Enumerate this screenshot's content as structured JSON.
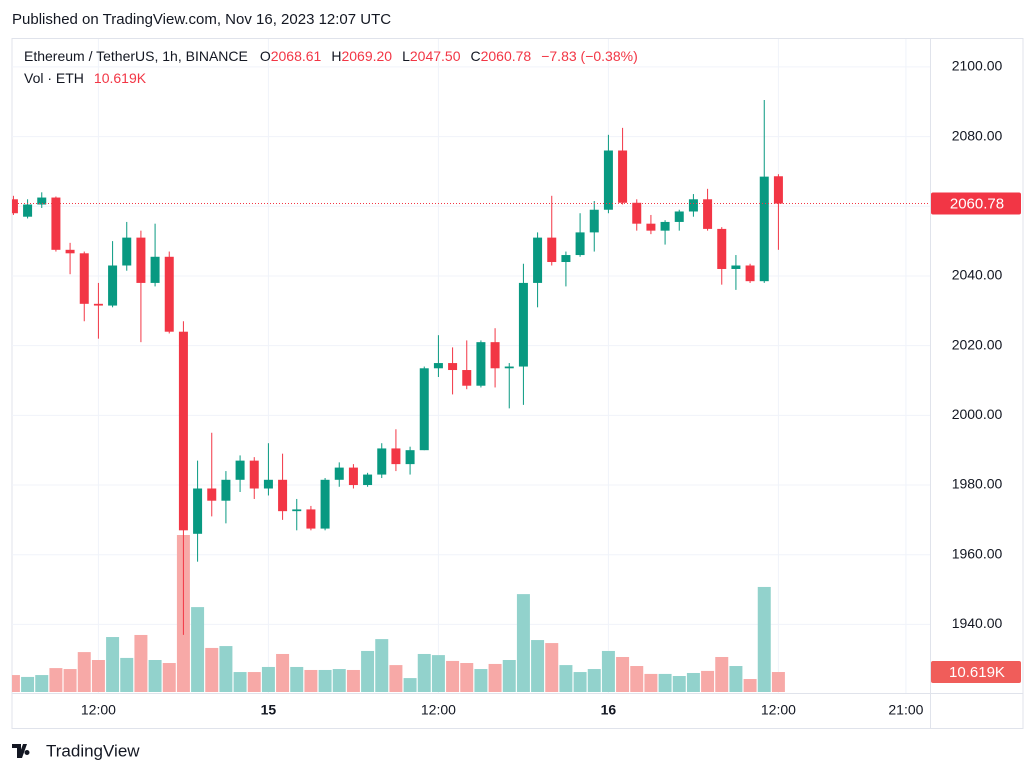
{
  "chart_data": {
    "type": "candlestick",
    "published": "Published on TradingView.com, Nov 16, 2023 12:07 UTC",
    "legend": {
      "symbol": "Ethereum / TetherUS, 1h, BINANCE",
      "fields": [
        {
          "key": "O",
          "label": "2068.61"
        },
        {
          "key": "H",
          "label": "2069.20"
        },
        {
          "key": "L",
          "label": "2047.50"
        },
        {
          "key": "C",
          "label": "2060.78"
        }
      ],
      "change": "−7.83 (−0.38%)",
      "volume_name": "Vol · ETH",
      "volume_label": "10.619K"
    },
    "brand": "TradingView",
    "up_color": "#089981",
    "down_color": "#f23645",
    "up_volume_color": "#92d2cc",
    "down_volume_color": "#f7a9a7",
    "x": [
      -18,
      -17,
      -16,
      -15,
      -14,
      -13,
      -12,
      -11,
      -10,
      -9,
      -8,
      -7,
      -6,
      -5,
      -4,
      -3,
      -2,
      -1,
      0,
      1,
      2,
      3,
      4,
      5,
      6,
      7,
      8,
      9,
      10,
      11,
      12,
      13,
      14,
      15,
      16,
      17,
      18,
      19,
      20,
      21,
      22,
      23,
      24,
      25,
      26,
      27,
      28,
      29,
      30,
      31,
      32,
      33,
      34,
      35,
      36
    ],
    "open": [
      2062,
      2057,
      2060.5,
      2062.5,
      2047.5,
      2046.5,
      2032,
      2031.5,
      2043,
      2051,
      2038,
      2045.5,
      2024,
      1966,
      1979,
      1975.5,
      1981.5,
      1987,
      1979,
      1981.5,
      1972.5,
      1973,
      1967.5,
      1981.5,
      1985,
      1980,
      1983,
      1990.5,
      1986,
      1990,
      2013.5,
      2015,
      2013,
      2008.5,
      2021,
      2013.5,
      2014,
      2038,
      2051,
      2044,
      2046,
      2052.5,
      2059,
      2076,
      2061,
      2055,
      2053,
      2055.5,
      2058.5,
      2062,
      2053.5,
      2042,
      2043,
      2038.5,
      2068.61
    ],
    "high": [
      2063,
      2062,
      2064,
      2062.8,
      2049.5,
      2047,
      2038,
      2050,
      2055.5,
      2053,
      2055,
      2047,
      2027,
      1987,
      1995,
      1984,
      1988.5,
      1988,
      1992,
      1989,
      1976,
      1974,
      1982,
      1986.5,
      1986,
      1983.5,
      1992,
      1996,
      1991,
      2014,
      2023,
      2019.5,
      2021.5,
      2021.5,
      2025,
      2015,
      2043.5,
      2052.5,
      2063,
      2047,
      2058,
      2061.5,
      2080.5,
      2082.5,
      2062,
      2057.5,
      2056,
      2059,
      2063.5,
      2065,
      2054,
      2046,
      2043.5,
      2090.5,
      2069.2
    ],
    "low": [
      2057.5,
      2056.5,
      2059.5,
      2047,
      2040.5,
      2027,
      2022,
      2031,
      2041.5,
      2021,
      2037,
      2023.5,
      1937,
      1958,
      1971,
      1969,
      1978,
      1976,
      1977,
      1970,
      1967,
      1967,
      1967,
      1979.5,
      1979,
      1979.5,
      1982,
      1984,
      1983,
      1990,
      2011,
      2006,
      2007.5,
      2008,
      2008,
      2002,
      2003,
      2031,
      2043,
      2037,
      2045.5,
      2047,
      2058,
      2060.5,
      2053,
      2052,
      2049,
      2053,
      2057,
      2053,
      2037.5,
      2036,
      2038,
      2038,
      2047.5
    ],
    "close": [
      2058,
      2060.5,
      2062.5,
      2047.5,
      2046.5,
      2032,
      2031.5,
      2043,
      2051,
      2038,
      2045.5,
      2024,
      1967,
      1979,
      1975.5,
      1981.5,
      1987,
      1979,
      1981.5,
      1972.5,
      1973,
      1967.5,
      1981.5,
      1985,
      1980,
      1983,
      1990.5,
      1986,
      1990,
      2013.5,
      2015,
      2013,
      2008.5,
      2021,
      2013.5,
      2014,
      2038,
      2051,
      2044,
      2046,
      2052.5,
      2059,
      2076,
      2061,
      2055,
      2053,
      2055.5,
      2058.5,
      2062,
      2053.5,
      2042,
      2043,
      2038.5,
      2068.5,
      2060.78
    ],
    "volume": [
      9000,
      8000,
      9000,
      12700,
      12200,
      21200,
      17000,
      29200,
      18100,
      30300,
      17000,
      15400,
      83400,
      45100,
      23400,
      24400,
      10600,
      10600,
      13300,
      20200,
      13300,
      11700,
      11700,
      12200,
      11700,
      21800,
      28100,
      14300,
      7400,
      20200,
      19600,
      16500,
      15400,
      12200,
      14900,
      17000,
      52000,
      27600,
      26000,
      14300,
      10600,
      12200,
      21800,
      18600,
      13800,
      9600,
      9600,
      8500,
      10100,
      11200,
      18600,
      13800,
      6900,
      55800,
      10619
    ],
    "xlim": [
      -18.1,
      46.7
    ],
    "xticks": [
      {
        "value": -12,
        "label": "12:00"
      },
      {
        "value": 0,
        "label": "15"
      },
      {
        "value": 12,
        "label": "12:00"
      },
      {
        "value": 24,
        "label": "16"
      },
      {
        "value": 36,
        "label": "12:00"
      },
      {
        "value": 45,
        "label": "21:00"
      }
    ],
    "ylim": [
      1920.6,
      2108
    ],
    "yticks": [
      {
        "value": 1940,
        "label": "1940.00"
      },
      {
        "value": 1960,
        "label": "1960.00"
      },
      {
        "value": 1980,
        "label": "1980.00"
      },
      {
        "value": 2000,
        "label": "2000.00"
      },
      {
        "value": 2020,
        "label": "2020.00"
      },
      {
        "value": 2040,
        "label": "2040.00"
      },
      {
        "value": 2060,
        "label": "2060.00"
      },
      {
        "value": 2080,
        "label": "2080.00"
      },
      {
        "value": 2100,
        "label": "2100.00"
      }
    ],
    "grid": true
  }
}
